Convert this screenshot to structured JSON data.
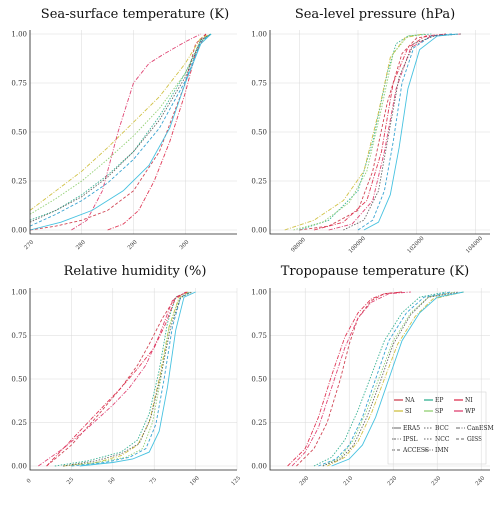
{
  "colors": {
    "NA": "#cc3344",
    "EP": "#22aa88",
    "NI": "#dd2244",
    "SI": "#ccbb33",
    "SP": "#88cc66",
    "WP": "#dd3366",
    "blue": "#2299cc",
    "gray": "#555555",
    "cyan": "#33bbdd"
  },
  "chart_data": [
    {
      "type": "line",
      "title": "Sea-surface temperature (K)",
      "xlim": [
        270,
        310
      ],
      "ylim": [
        0,
        1
      ],
      "xticks": [
        "270",
        "280",
        "290",
        "300"
      ],
      "xtick_values": [
        270,
        280,
        290,
        300
      ],
      "yticks": [
        "0.00",
        "0.25",
        "0.50",
        "0.75",
        "1.00"
      ],
      "grid": true,
      "series": [
        {
          "color": "#cc3344",
          "dash": "3,2",
          "x": [
            270,
            275,
            280,
            285,
            290,
            295,
            300,
            302,
            304
          ],
          "y": [
            0,
            0.02,
            0.05,
            0.1,
            0.2,
            0.4,
            0.75,
            0.95,
            1
          ]
        },
        {
          "color": "#22aa88",
          "dash": "1.5,1.5",
          "x": [
            270,
            275,
            280,
            285,
            290,
            295,
            300,
            303,
            305
          ],
          "y": [
            0.05,
            0.1,
            0.18,
            0.28,
            0.4,
            0.58,
            0.8,
            0.97,
            1
          ]
        },
        {
          "color": "#dd2244",
          "dash": "4,1.5,1,1.5",
          "x": [
            285,
            288,
            291,
            294,
            297,
            300,
            302,
            304
          ],
          "y": [
            0,
            0.03,
            0.1,
            0.25,
            0.45,
            0.7,
            0.9,
            1
          ]
        },
        {
          "color": "#ccbb33",
          "dash": "4,1.5,1,1.5",
          "x": [
            270,
            275,
            280,
            285,
            290,
            295,
            300,
            303,
            305
          ],
          "y": [
            0.1,
            0.2,
            0.3,
            0.42,
            0.55,
            0.68,
            0.85,
            0.98,
            1
          ]
        },
        {
          "color": "#88cc66",
          "dash": "1.5,1.5",
          "x": [
            270,
            275,
            280,
            285,
            290,
            295,
            300,
            303,
            305
          ],
          "y": [
            0.08,
            0.16,
            0.25,
            0.36,
            0.48,
            0.62,
            0.8,
            0.96,
            1
          ]
        },
        {
          "color": "#dd3366",
          "dash": "4,1.5,1,1.5",
          "x": [
            278,
            281,
            284,
            287,
            290,
            293,
            296,
            300,
            303
          ],
          "y": [
            0,
            0.05,
            0.2,
            0.5,
            0.75,
            0.85,
            0.9,
            0.96,
            1
          ]
        },
        {
          "color": "#2299cc",
          "dash": "3,2",
          "x": [
            270,
            275,
            280,
            285,
            290,
            295,
            300,
            303,
            305
          ],
          "y": [
            0.02,
            0.08,
            0.15,
            0.24,
            0.36,
            0.52,
            0.76,
            0.96,
            1
          ]
        },
        {
          "color": "#555555",
          "dash": "1.5,1.5",
          "x": [
            270,
            275,
            280,
            285,
            290,
            295,
            300,
            303,
            305
          ],
          "y": [
            0.04,
            0.1,
            0.17,
            0.27,
            0.4,
            0.56,
            0.78,
            0.97,
            1
          ]
        },
        {
          "color": "#33bbdd",
          "dash": "",
          "x": [
            270,
            276,
            282,
            288,
            293,
            297,
            300,
            303,
            305
          ],
          "y": [
            0,
            0.04,
            0.1,
            0.2,
            0.33,
            0.52,
            0.75,
            0.95,
            1
          ]
        }
      ]
    },
    {
      "type": "line",
      "title": "Sea-level pressure (hPa)",
      "xlim": [
        97000,
        104500
      ],
      "ylim": [
        0,
        1
      ],
      "xticks": [
        "98000",
        "100000",
        "102000",
        "104000"
      ],
      "xtick_values": [
        98000,
        100000,
        102000,
        104000
      ],
      "yticks": [
        "0.00",
        "0.25",
        "0.50",
        "0.75",
        "1.00"
      ],
      "grid": true,
      "series": [
        {
          "color": "#cc3344",
          "dash": "3,2",
          "x": [
            98000,
            99000,
            100000,
            100500,
            101000,
            101500,
            102000,
            103000
          ],
          "y": [
            0,
            0.02,
            0.1,
            0.3,
            0.65,
            0.9,
            0.98,
            1
          ]
        },
        {
          "color": "#22aa88",
          "dash": "1.5,1.5",
          "x": [
            98000,
            99000,
            100000,
            100500,
            101000,
            101300,
            101700,
            102500
          ],
          "y": [
            0,
            0.05,
            0.2,
            0.45,
            0.8,
            0.95,
            0.99,
            1
          ]
        },
        {
          "color": "#dd2244",
          "dash": "4,1.5,1,1.5",
          "x": [
            98500,
            99500,
            100300,
            100800,
            101200,
            101700,
            102300,
            103000
          ],
          "y": [
            0,
            0.04,
            0.15,
            0.4,
            0.75,
            0.93,
            0.99,
            1
          ]
        },
        {
          "color": "#ccbb33",
          "dash": "4,1.5,1,1.5",
          "x": [
            97500,
            98500,
            99500,
            100200,
            100700,
            101100,
            101600,
            102200
          ],
          "y": [
            0,
            0.05,
            0.15,
            0.3,
            0.6,
            0.88,
            0.98,
            1
          ]
        },
        {
          "color": "#88cc66",
          "dash": "1.5,1.5",
          "x": [
            97800,
            98800,
            99700,
            100300,
            100800,
            101200,
            101700,
            102300
          ],
          "y": [
            0,
            0.04,
            0.14,
            0.3,
            0.62,
            0.9,
            0.99,
            1
          ]
        },
        {
          "color": "#dd3366",
          "dash": "4,1.5,1,1.5",
          "x": [
            99000,
            99800,
            100500,
            100900,
            101300,
            101800,
            102500,
            103500
          ],
          "y": [
            0,
            0.03,
            0.15,
            0.4,
            0.72,
            0.93,
            0.99,
            1
          ]
        },
        {
          "color": "#2299cc",
          "dash": "3,2",
          "x": [
            100000,
            100500,
            100900,
            101200,
            101500,
            101900,
            102500,
            103200
          ],
          "y": [
            0,
            0.05,
            0.2,
            0.45,
            0.75,
            0.93,
            0.99,
            1
          ]
        },
        {
          "color": "#555555",
          "dash": "1.5,1.5",
          "x": [
            99500,
            100200,
            100700,
            101000,
            101400,
            101900,
            102600,
            103500
          ],
          "y": [
            0,
            0.05,
            0.2,
            0.45,
            0.78,
            0.95,
            0.99,
            1
          ]
        },
        {
          "color": "#33bbdd",
          "dash": "",
          "x": [
            100200,
            100700,
            101100,
            101400,
            101700,
            102100,
            102700,
            103400
          ],
          "y": [
            0,
            0.04,
            0.18,
            0.42,
            0.72,
            0.92,
            0.99,
            1
          ]
        }
      ]
    },
    {
      "type": "line",
      "title": "Relative humidity (%)",
      "xlim": [
        0,
        125
      ],
      "ylim": [
        0,
        1
      ],
      "xticks": [
        "0",
        "25",
        "50",
        "75",
        "100",
        "125"
      ],
      "xtick_values": [
        0,
        25,
        50,
        75,
        100,
        125
      ],
      "yticks": [
        "0.00",
        "0.25",
        "0.50",
        "0.75",
        "1.00"
      ],
      "grid": true,
      "series": [
        {
          "color": "#cc3344",
          "dash": "3,2",
          "x": [
            10,
            25,
            40,
            55,
            65,
            72,
            80,
            88,
            95
          ],
          "y": [
            0,
            0.12,
            0.28,
            0.45,
            0.58,
            0.7,
            0.85,
            0.97,
            1
          ]
        },
        {
          "color": "#22aa88",
          "dash": "1.5,1.5",
          "x": [
            15,
            35,
            55,
            65,
            72,
            78,
            83,
            88,
            95
          ],
          "y": [
            0,
            0.03,
            0.08,
            0.15,
            0.3,
            0.55,
            0.82,
            0.97,
            1
          ]
        },
        {
          "color": "#dd2244",
          "dash": "4,1.5,1,1.5",
          "x": [
            10,
            25,
            40,
            55,
            65,
            75,
            82,
            88,
            95
          ],
          "y": [
            0,
            0.15,
            0.3,
            0.45,
            0.56,
            0.68,
            0.82,
            0.97,
            1
          ]
        },
        {
          "color": "#ccbb33",
          "dash": "4,1.5,1,1.5",
          "x": [
            20,
            40,
            55,
            65,
            72,
            78,
            84,
            90,
            96
          ],
          "y": [
            0,
            0.02,
            0.06,
            0.12,
            0.25,
            0.5,
            0.8,
            0.97,
            1
          ]
        },
        {
          "color": "#88cc66",
          "dash": "1.5,1.5",
          "x": [
            20,
            40,
            58,
            68,
            74,
            79,
            84,
            90,
            97
          ],
          "y": [
            0,
            0.02,
            0.05,
            0.1,
            0.25,
            0.5,
            0.8,
            0.96,
            1
          ]
        },
        {
          "color": "#dd3366",
          "dash": "4,1.5,1,1.5",
          "x": [
            5,
            20,
            35,
            50,
            60,
            70,
            78,
            86,
            94
          ],
          "y": [
            0,
            0.1,
            0.22,
            0.35,
            0.45,
            0.58,
            0.75,
            0.95,
            1
          ]
        },
        {
          "color": "#2299cc",
          "dash": "3,2",
          "x": [
            25,
            45,
            60,
            70,
            76,
            81,
            86,
            91,
            97
          ],
          "y": [
            0,
            0.02,
            0.05,
            0.1,
            0.24,
            0.5,
            0.8,
            0.97,
            1
          ]
        },
        {
          "color": "#555555",
          "dash": "1.5,1.5",
          "x": [
            20,
            40,
            55,
            66,
            73,
            79,
            85,
            91,
            98
          ],
          "y": [
            0,
            0.03,
            0.07,
            0.13,
            0.28,
            0.52,
            0.8,
            0.97,
            1
          ]
        },
        {
          "color": "#33bbdd",
          "dash": "",
          "x": [
            30,
            50,
            62,
            72,
            78,
            83,
            88,
            93,
            100
          ],
          "y": [
            0,
            0.02,
            0.04,
            0.08,
            0.2,
            0.45,
            0.78,
            0.97,
            1
          ]
        }
      ]
    },
    {
      "type": "line",
      "title": "Tropopause temperature (K)",
      "xlim": [
        192,
        242
      ],
      "ylim": [
        0,
        1
      ],
      "xticks": [
        "200",
        "210",
        "220",
        "230",
        "240"
      ],
      "xtick_values": [
        200,
        210,
        220,
        230,
        240
      ],
      "yticks": [
        "0.00",
        "0.25",
        "0.50",
        "0.75",
        "1.00"
      ],
      "grid": true,
      "legend": {
        "placement": "lower-right",
        "regions": [
          {
            "label": "NA",
            "color": "#cc3344"
          },
          {
            "label": "EP",
            "color": "#22aa88"
          },
          {
            "label": "NI",
            "color": "#dd2244"
          },
          {
            "label": "SI",
            "color": "#ccbb33"
          },
          {
            "label": "SP",
            "color": "#88cc66"
          },
          {
            "label": "WP",
            "color": "#dd3366"
          }
        ],
        "models": [
          {
            "label": "ERA5",
            "dash": ""
          },
          {
            "label": "BCC",
            "dash": "1.5,1.5"
          },
          {
            "label": "CanESM",
            "dash": "4,1.5,1,1.5"
          },
          {
            "label": "IPSL",
            "dash": "4,1.5,1,1.5"
          },
          {
            "label": "NCC",
            "dash": "1.5,1.5"
          },
          {
            "label": "GISS",
            "dash": "3,2"
          },
          {
            "label": "ACCESS",
            "dash": "3,2"
          },
          {
            "label": "IMN",
            "dash": "4,1.5,1,1.5"
          }
        ]
      },
      "series": [
        {
          "color": "#cc3344",
          "dash": "3,2",
          "x": [
            198,
            202,
            205,
            208,
            210,
            212,
            215,
            218,
            222
          ],
          "y": [
            0,
            0.1,
            0.25,
            0.5,
            0.7,
            0.85,
            0.95,
            0.99,
            1
          ]
        },
        {
          "color": "#22aa88",
          "dash": "1.5,1.5",
          "x": [
            202,
            206,
            209,
            212,
            215,
            218,
            222,
            226,
            232
          ],
          "y": [
            0,
            0.05,
            0.15,
            0.32,
            0.52,
            0.72,
            0.88,
            0.97,
            1
          ]
        },
        {
          "color": "#dd2244",
          "dash": "4,1.5,1,1.5",
          "x": [
            196,
            200,
            203,
            206,
            209,
            212,
            215,
            218,
            222
          ],
          "y": [
            0,
            0.1,
            0.28,
            0.52,
            0.74,
            0.88,
            0.96,
            0.99,
            1
          ]
        },
        {
          "color": "#ccbb33",
          "dash": "4,1.5,1,1.5",
          "x": [
            205,
            209,
            212,
            215,
            218,
            221,
            225,
            229,
            236
          ],
          "y": [
            0,
            0.05,
            0.14,
            0.3,
            0.5,
            0.7,
            0.86,
            0.96,
            1
          ]
        },
        {
          "color": "#88cc66",
          "dash": "1.5,1.5",
          "x": [
            204,
            208,
            211,
            214,
            217,
            220,
            224,
            228,
            234
          ],
          "y": [
            0,
            0.05,
            0.15,
            0.32,
            0.52,
            0.72,
            0.88,
            0.97,
            1
          ]
        },
        {
          "color": "#dd3366",
          "dash": "4,1.5,1,1.5",
          "x": [
            197,
            200,
            203,
            206,
            209,
            212,
            215,
            219,
            224
          ],
          "y": [
            0,
            0.08,
            0.22,
            0.45,
            0.68,
            0.85,
            0.94,
            0.99,
            1
          ]
        },
        {
          "color": "#2299cc",
          "dash": "3,2",
          "x": [
            203,
            207,
            210,
            213,
            216,
            219,
            223,
            227,
            233
          ],
          "y": [
            0,
            0.04,
            0.12,
            0.28,
            0.5,
            0.72,
            0.88,
            0.97,
            1
          ]
        },
        {
          "color": "#555555",
          "dash": "1.5,1.5",
          "x": [
            204,
            208,
            211,
            214,
            217,
            220,
            224,
            228,
            235
          ],
          "y": [
            0,
            0.04,
            0.12,
            0.28,
            0.48,
            0.7,
            0.87,
            0.97,
            1
          ]
        },
        {
          "color": "#33bbdd",
          "dash": "",
          "x": [
            206,
            210,
            213,
            216,
            219,
            222,
            226,
            230,
            236
          ],
          "y": [
            0,
            0.04,
            0.12,
            0.28,
            0.5,
            0.72,
            0.88,
            0.97,
            1
          ]
        }
      ]
    }
  ]
}
